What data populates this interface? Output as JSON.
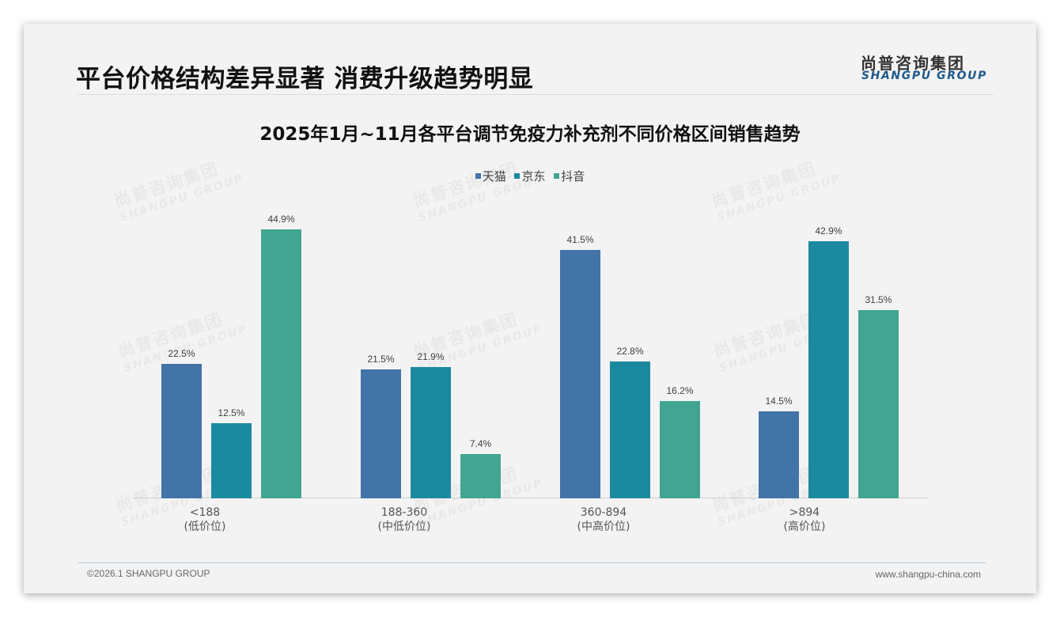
{
  "header": {
    "title": "平台价格结构差异显著 消费升级趋势明显",
    "logo_cn": "尚普咨询集团",
    "logo_en": "SHANGPU GROUP"
  },
  "watermark": {
    "cn": "尚普咨询集团",
    "en": "SHANGPU GROUP"
  },
  "footer": {
    "copyright": "©2026.1 SHANGPU GROUP",
    "website": "www.shangpu-china.com"
  },
  "colors": {
    "tmall": "#4274a8",
    "jd": "#1b8aa0",
    "douyin": "#42a591",
    "background": "#f3f3f3"
  },
  "chart_data": {
    "type": "bar",
    "title": "2025年1月~11月各平台调节免疫力补充剂不同价格区间销售趋势",
    "categories": [
      "<188",
      "188-360",
      "360-894",
      ">894"
    ],
    "category_sublabels": [
      "(低价位)",
      "(中低价位)",
      "(中高价位)",
      "(高价位)"
    ],
    "series": [
      {
        "name": "天猫",
        "color": "#4274a8",
        "values": [
          22.5,
          21.5,
          41.5,
          14.5
        ],
        "labels": [
          "22.5%",
          "21.5%",
          "41.5%",
          "14.5%"
        ]
      },
      {
        "name": "京东",
        "color": "#1b8aa0",
        "values": [
          12.5,
          21.9,
          22.8,
          42.9
        ],
        "labels": [
          "12.5%",
          "21.9%",
          "22.8%",
          "42.9%"
        ]
      },
      {
        "name": "抖音",
        "color": "#42a591",
        "values": [
          44.9,
          7.4,
          16.2,
          31.5
        ],
        "labels": [
          "44.9%",
          "7.4%",
          "16.2%",
          "31.5%"
        ]
      }
    ],
    "xlabel": "",
    "ylabel": "",
    "unit": "%",
    "ylim": [
      0,
      50
    ],
    "grid": false,
    "legend_position": "top"
  }
}
